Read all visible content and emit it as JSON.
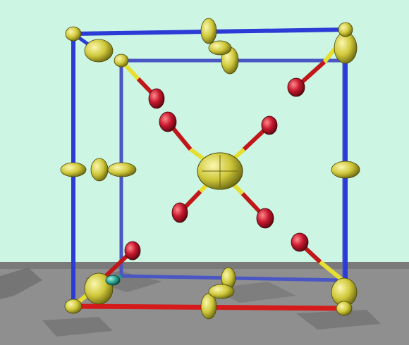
{
  "scene": {
    "background_color": "#cdf5e4",
    "floor_color": "#8f8f8f",
    "axis_colors": {
      "a": "#d41a1a",
      "b": "#2b3bd6",
      "c": "#2b3bd6"
    },
    "atom_colors": {
      "yellow": "#d8d23a",
      "red": "#c8182e",
      "teal": "#2a9a8a"
    },
    "bond_colors": {
      "yellow": "#e8e23a",
      "red": "#c01818"
    }
  }
}
